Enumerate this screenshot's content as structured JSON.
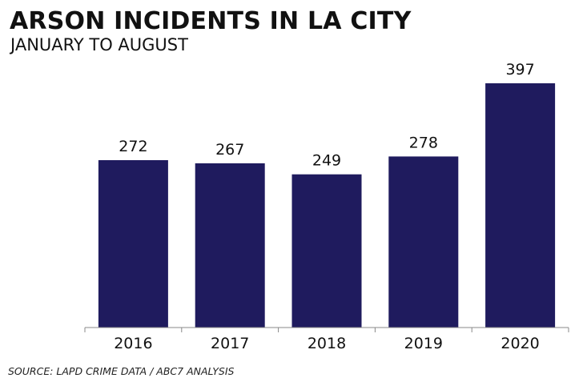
{
  "chart_data": {
    "type": "bar",
    "title": "ARSON INCIDENTS IN LA CITY",
    "subtitle": "JANUARY TO AUGUST",
    "categories": [
      "2016",
      "2017",
      "2018",
      "2019",
      "2020"
    ],
    "values": [
      272,
      267,
      249,
      278,
      397
    ],
    "data_labels": [
      "272",
      "267",
      "249",
      "278",
      "397"
    ],
    "xlabel": "",
    "ylabel": "",
    "ylim": [
      0,
      397
    ],
    "grid": false,
    "legend": "none",
    "bar_color": "#1f1b5e",
    "axis_color": "#888888",
    "source": "SOURCE: LAPD CRIME DATA / ABC7 ANALYSIS"
  }
}
